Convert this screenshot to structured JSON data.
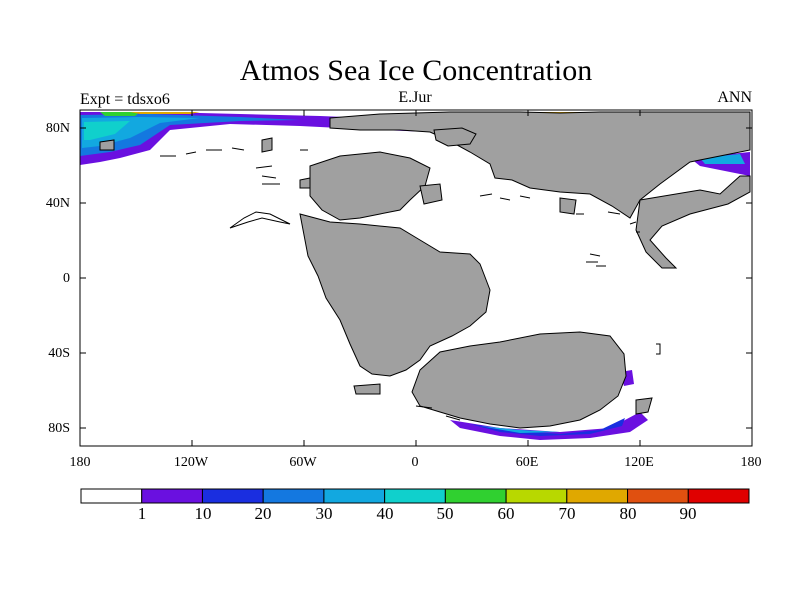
{
  "title": "Atmos Sea Ice Concentration",
  "experiment": "Expt = tdsxo6",
  "period": "E.Jur",
  "season": "ANN",
  "map": {
    "lat_labels": [
      "80N",
      "40N",
      "0",
      "40S",
      "80S"
    ],
    "lon_labels": [
      "180",
      "120W",
      "60W",
      "0",
      "60E",
      "120E",
      "180"
    ]
  },
  "colors": {
    "land": "#a0a0a0",
    "coast": "#000000",
    "background": "#ffffff"
  },
  "colorbar": {
    "labels": [
      "1",
      "10",
      "20",
      "30",
      "40",
      "50",
      "60",
      "70",
      "80",
      "90"
    ],
    "colors": [
      "#ffffff",
      "#6a10e0",
      "#1a2ee0",
      "#1478e0",
      "#12a8e0",
      "#10d0cc",
      "#30d030",
      "#b8d800",
      "#e0a800",
      "#e05010",
      "#e00000"
    ]
  }
}
